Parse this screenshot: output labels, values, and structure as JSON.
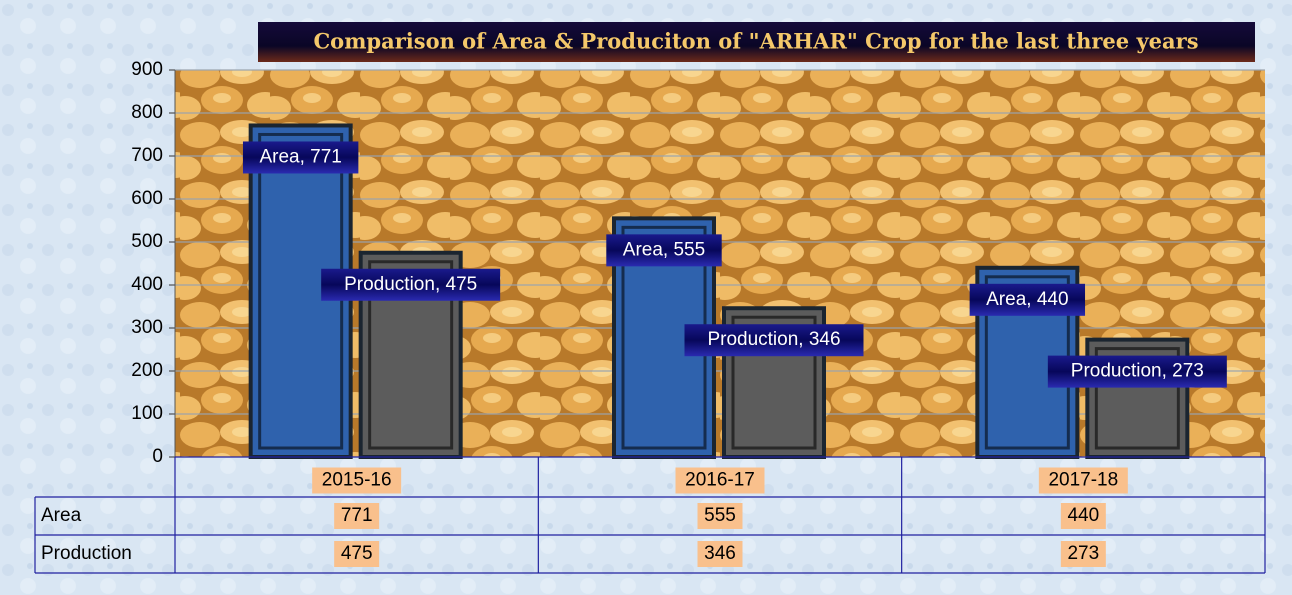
{
  "chart_data": {
    "type": "bar",
    "title": "Comparison of Area & Produciton of \"ARHAR\" Crop for the last three years",
    "categories": [
      "2015-16",
      "2016-17",
      "2017-18"
    ],
    "series": [
      {
        "name": "Area",
        "color": "#2f62ad",
        "values": [
          771,
          555,
          440
        ],
        "value_labels": [
          "Area, 771",
          "Area, 555",
          "Area, 440"
        ]
      },
      {
        "name": "Production",
        "color": "#5c5c5c",
        "values": [
          475,
          346,
          273
        ],
        "value_labels": [
          "Production, 475",
          "Production, 346",
          "Production, 273"
        ]
      }
    ],
    "ylim": [
      0,
      900
    ],
    "yticks": [
      0,
      100,
      200,
      300,
      400,
      500,
      600,
      700,
      800,
      900
    ],
    "grid": true,
    "data_table": true
  }
}
